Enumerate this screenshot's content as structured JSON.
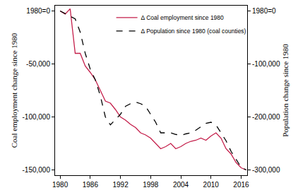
{
  "chart_data": {
    "type": "line",
    "y_label": "Coal employment change since 1980",
    "y2_label": "Population change since 1980",
    "x": [
      1980,
      1981,
      1982,
      1983,
      1984,
      1985,
      1986,
      1987,
      1988,
      1989,
      1990,
      1991,
      1992,
      1993,
      1994,
      1995,
      1996,
      1997,
      1998,
      1999,
      2000,
      2001,
      2002,
      2003,
      2004,
      2005,
      2006,
      2007,
      2008,
      2009,
      2010,
      2011,
      2012,
      2013,
      2014,
      2015,
      2016,
      2017
    ],
    "series": [
      {
        "name": "Δ Coal employment since 1980",
        "color": "#c41e4a",
        "line_style": "solid",
        "values": [
          0,
          -3000,
          2000,
          -40000,
          -40000,
          -52000,
          -58000,
          -65000,
          -75000,
          -85000,
          -87000,
          -93000,
          -100000,
          -103000,
          -107000,
          -110000,
          -115000,
          -117000,
          -120000,
          -125000,
          -130000,
          -128000,
          -125000,
          -130000,
          -128000,
          -125000,
          -123000,
          -122000,
          -120000,
          -122000,
          -118000,
          -115000,
          -120000,
          -130000,
          -135000,
          -143000,
          -148000,
          -150000
        ]
      },
      {
        "name": "Δ Population since 1980 (coal counties)",
        "color": "#000000",
        "line_style": "dash",
        "axis": "y2",
        "values": [
          0,
          -5000,
          -10000,
          -15000,
          -40000,
          -80000,
          -110000,
          -130000,
          -160000,
          -200000,
          -215000,
          -205000,
          -195000,
          -180000,
          -175000,
          -172000,
          -175000,
          -180000,
          -195000,
          -210000,
          -230000,
          -230000,
          -230000,
          -233000,
          -235000,
          -232000,
          -230000,
          -225000,
          -218000,
          -212000,
          -210000,
          -215000,
          -230000,
          -245000,
          -265000,
          -280000,
          -295000,
          -300000
        ]
      }
    ],
    "xlim": [
      1979,
      2017.2
    ],
    "xticks": [
      1980,
      1986,
      1992,
      1998,
      2004,
      2010,
      2016
    ],
    "ylim": [
      -155000,
      5000
    ],
    "yticks": [
      {
        "value": 0,
        "label": "1980=0"
      },
      {
        "value": -50000,
        "label": "-50,000"
      },
      {
        "value": -100000,
        "label": "-100,000"
      },
      {
        "value": -150000,
        "label": "-150,000"
      }
    ],
    "y2lim": [
      -310000,
      10000
    ],
    "y2ticks": [
      {
        "value": 0,
        "label": "1980=0"
      },
      {
        "value": -100000,
        "label": "-100,000"
      },
      {
        "value": -200000,
        "label": "-200,000"
      },
      {
        "value": -300000,
        "label": "-300,000"
      }
    ],
    "grid": false,
    "legend": "top"
  }
}
